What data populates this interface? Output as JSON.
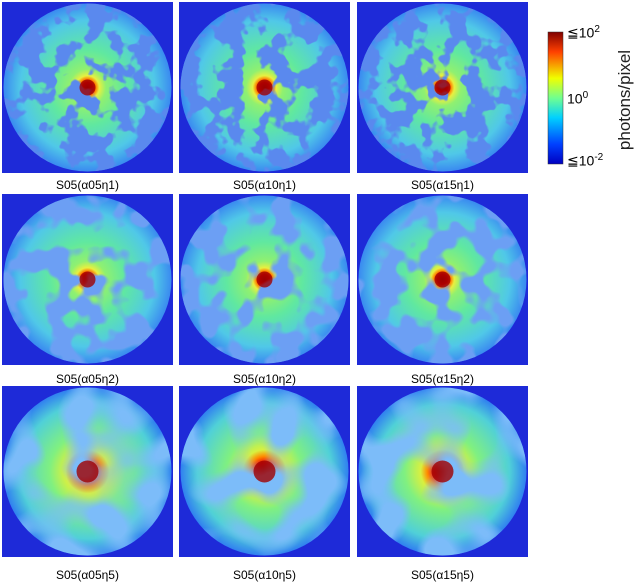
{
  "panels": [
    {
      "label": "S05(α05η1)"
    },
    {
      "label": "S05(α10η1)"
    },
    {
      "label": "S05(α15η1)"
    },
    {
      "label": "S05(α05η2)"
    },
    {
      "label": "S05(α10η2)"
    },
    {
      "label": "S05(α15η2)"
    },
    {
      "label": "S05(α05η5)"
    },
    {
      "label": "S05(α10η5)"
    },
    {
      "label": "S05(α15η5)"
    }
  ],
  "colorbar": {
    "title": "photons/pixel",
    "ticks": [
      {
        "base": "≦10",
        "exp": "2"
      },
      {
        "base": "10",
        "exp": "0"
      },
      {
        "base": "≦10",
        "exp": "-2"
      }
    ]
  }
}
